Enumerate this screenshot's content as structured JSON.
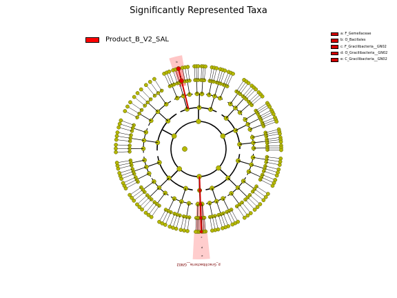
{
  "title": "Significantly Represented Taxa",
  "legend": {
    "label": "Product_B_V2_SAL",
    "color": "#ff0000"
  },
  "clade_key": [
    "a: F_Gemellaceae",
    "b: O_Bacillales",
    "c: F_Gracilibacteria__GN02",
    "d: O_Gracilibacteria__GN02",
    "e: C_Gracilibacteria__GN02"
  ],
  "highlights": [
    {
      "letters": [
        "b",
        "a"
      ],
      "color": "#ff0000"
    },
    {
      "letters": [
        "c",
        "d",
        "e"
      ],
      "color": "#ff0000"
    }
  ],
  "outer_label": "p_Gracilibacteria__GN02",
  "colors": {
    "node": "#b5b800",
    "node_border": "#555500",
    "highlight_node": "#e00000"
  }
}
